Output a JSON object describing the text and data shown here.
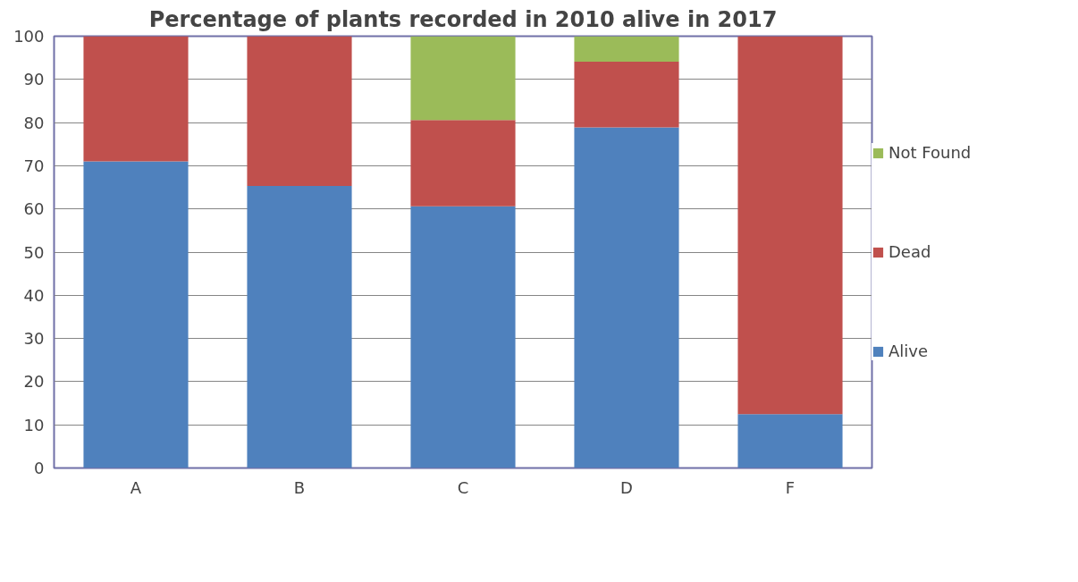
{
  "chart_data": {
    "type": "bar",
    "title": "Percentage of plants recorded in 2010 alive in 2017",
    "categories": [
      "A",
      "B",
      "C",
      "D",
      "F"
    ],
    "stacked": true,
    "series": [
      {
        "name": "Alive",
        "color": "#4f81bd",
        "values": [
          71,
          65.3,
          60.6,
          78.9,
          12.5
        ]
      },
      {
        "name": "Dead",
        "color": "#c0504d",
        "values": [
          29,
          34.7,
          20,
          15.2,
          87.5
        ]
      },
      {
        "name": "Not Found",
        "color": "#9bbb59",
        "values": [
          null,
          null,
          19.4,
          5.9,
          null
        ]
      }
    ],
    "ylim": [
      0,
      100
    ],
    "yticks": [
      0,
      10,
      20,
      30,
      40,
      50,
      60,
      70,
      80,
      90,
      100
    ],
    "grid": "y",
    "legend": "right"
  }
}
